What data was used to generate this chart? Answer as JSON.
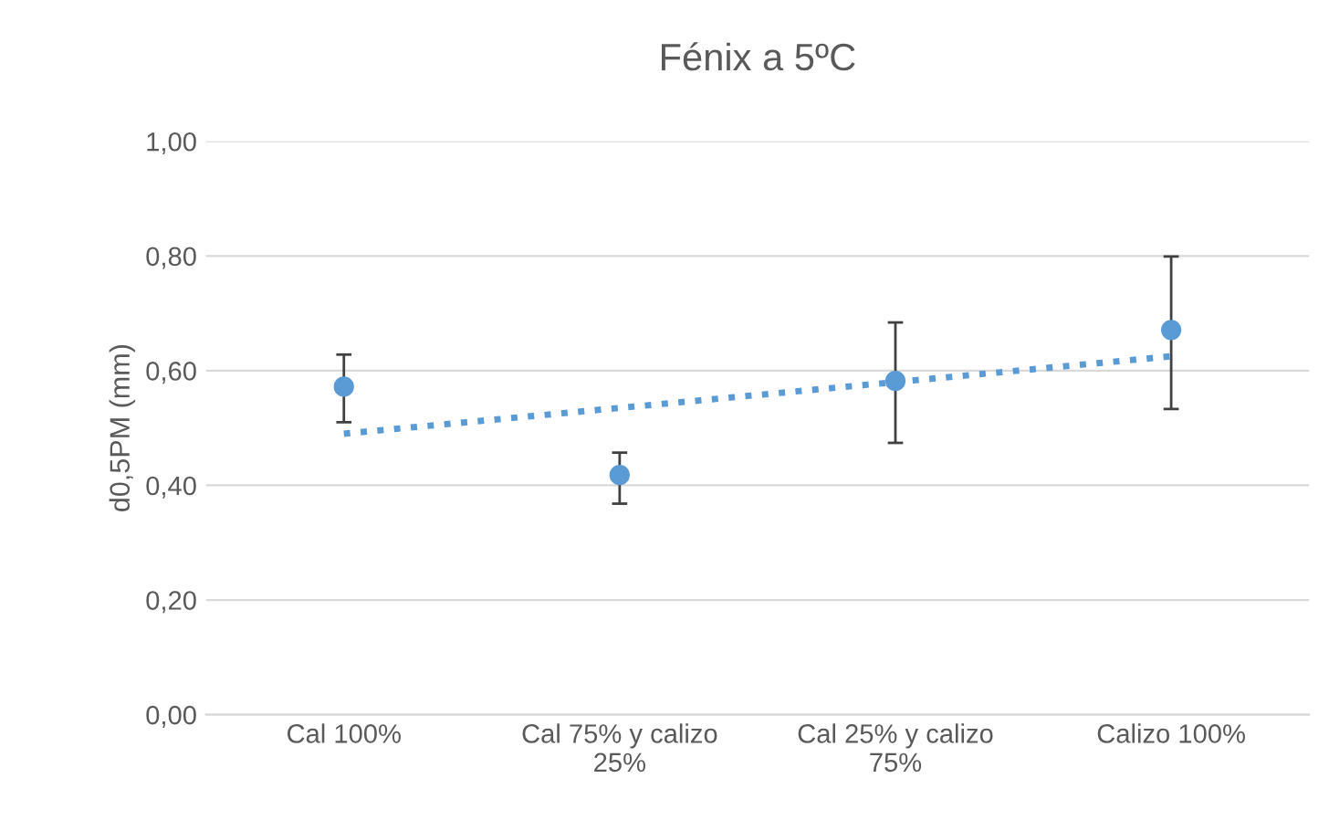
{
  "chart_data": {
    "type": "scatter",
    "title": "Fénix a 5ºC",
    "ylabel": "d0,5PM (mm)",
    "categories": [
      "Cal 100%",
      "Cal 75% y calizo\n25%",
      "Cal 25% y calizo\n75%",
      "Calizo 100%"
    ],
    "series": [
      {
        "color": "#5b9bd5",
        "values": [
          0.572,
          0.418,
          0.582,
          0.671
        ],
        "errors": [
          [
            0.51,
            0.628
          ],
          [
            0.368,
            0.457
          ],
          [
            0.474,
            0.684
          ],
          [
            0.533,
            0.799
          ]
        ],
        "marker": "circle"
      },
      {
        "type": "line",
        "color": "#5b9bd5",
        "values": [
          0.49,
          0.535,
          0.58,
          0.625
        ],
        "line_style": "dotted",
        "marker": "none"
      }
    ],
    "ylim": [
      0,
      1
    ],
    "yticks": [
      {
        "value": 0,
        "label": "0,00"
      },
      {
        "value": 0.2,
        "label": "0,20"
      },
      {
        "value": 0.4,
        "label": "0,40"
      },
      {
        "value": 0.6,
        "label": "0,60"
      },
      {
        "value": 0.8,
        "label": "0,80"
      },
      {
        "value": 1,
        "label": "1,00"
      }
    ],
    "grid": "y",
    "legend": false
  }
}
